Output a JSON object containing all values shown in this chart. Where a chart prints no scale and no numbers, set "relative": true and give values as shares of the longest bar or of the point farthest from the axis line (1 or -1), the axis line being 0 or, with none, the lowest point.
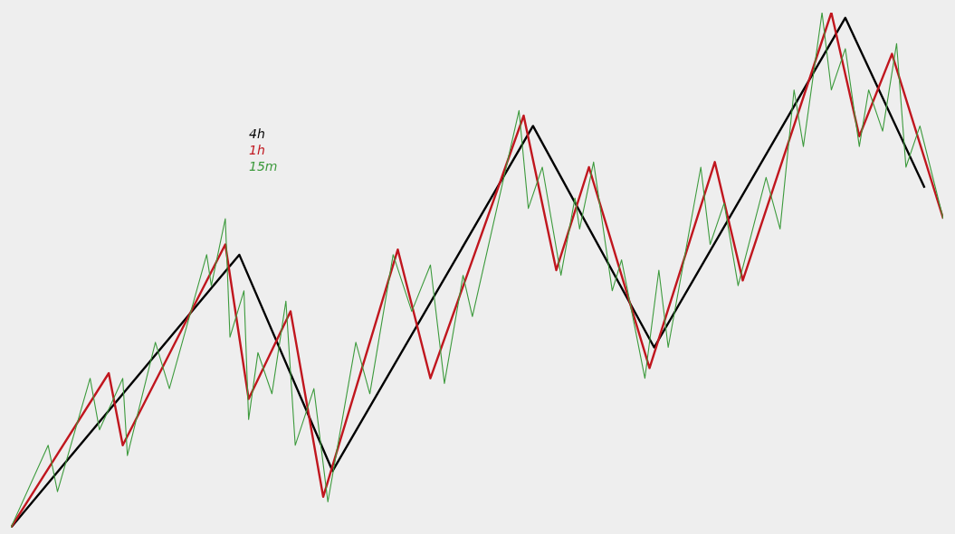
{
  "chart_data": {
    "type": "line",
    "relative": true,
    "grid": false,
    "marker": "none",
    "line_style": "solid",
    "categories": [
      null,
      null,
      null,
      null,
      null,
      null,
      null,
      null,
      null,
      null,
      null,
      null,
      null,
      null,
      null,
      null,
      null,
      null,
      null,
      null,
      null,
      null,
      null,
      null,
      null,
      null,
      null,
      null,
      null,
      null,
      null,
      null,
      null,
      null,
      null,
      null,
      null,
      null,
      null,
      null,
      null,
      null,
      null,
      null,
      null,
      null,
      null,
      null,
      null,
      null,
      null,
      null,
      null,
      null,
      null,
      null,
      null,
      null,
      null,
      null,
      null,
      null,
      null,
      null,
      null,
      null,
      null,
      null,
      null,
      null,
      null,
      null,
      null,
      null,
      null,
      null,
      null,
      null,
      null,
      null,
      null,
      null,
      null,
      null,
      null,
      null,
      null,
      null,
      null,
      null,
      null,
      null,
      null,
      null,
      null,
      null,
      null,
      null,
      null,
      null,
      null,
      null,
      null,
      null,
      null,
      null,
      null,
      null,
      null,
      null,
      null,
      null,
      null,
      null,
      null,
      null,
      null,
      null,
      null,
      null,
      null,
      null,
      null,
      null,
      null,
      null,
      null,
      null,
      null,
      null,
      null,
      null,
      null,
      null,
      null,
      null,
      null,
      null,
      null,
      null,
      null,
      null,
      null,
      null,
      null,
      null,
      null,
      null,
      null,
      null,
      null,
      null,
      null,
      null,
      null,
      null,
      null,
      null,
      null,
      null,
      null,
      null,
      null,
      null,
      null,
      null,
      null,
      null,
      null,
      null,
      null,
      null,
      null,
      null,
      null,
      null,
      null,
      null,
      null,
      null,
      null,
      null,
      null,
      null,
      null,
      null,
      null,
      null,
      null,
      null,
      null,
      null,
      null,
      null,
      null,
      null,
      null,
      null,
      null,
      null,
      null
    ],
    "series": [
      {
        "name": "4h",
        "color": "#000000",
        "values": [
          0,
          null,
          null,
          null,
          null,
          null,
          null,
          null,
          null,
          null,
          null,
          null,
          null,
          null,
          null,
          null,
          null,
          null,
          null,
          null,
          null,
          null,
          null,
          null,
          null,
          null,
          null,
          null,
          null,
          null,
          null,
          null,
          null,
          null,
          null,
          null,
          null,
          null,
          null,
          null,
          null,
          null,
          null,
          null,
          null,
          null,
          null,
          null,
          null,
          0.53,
          null,
          null,
          null,
          null,
          null,
          null,
          null,
          null,
          null,
          null,
          null,
          null,
          null,
          null,
          null,
          null,
          null,
          null,
          null,
          0.11,
          null,
          null,
          null,
          null,
          null,
          null,
          null,
          null,
          null,
          null,
          null,
          null,
          null,
          null,
          null,
          null,
          null,
          null,
          null,
          null,
          null,
          null,
          null,
          null,
          null,
          null,
          null,
          null,
          null,
          null,
          null,
          null,
          null,
          null,
          null,
          null,
          null,
          null,
          null,
          null,
          null,
          null,
          0.78,
          null,
          null,
          null,
          null,
          null,
          null,
          null,
          null,
          null,
          null,
          null,
          null,
          null,
          null,
          null,
          null,
          null,
          null,
          null,
          null,
          null,
          null,
          null,
          null,
          null,
          0.35,
          null,
          null,
          null,
          null,
          null,
          null,
          null,
          null,
          null,
          null,
          null,
          null,
          null,
          null,
          null,
          null,
          null,
          null,
          null,
          null,
          null,
          null,
          null,
          null,
          null,
          null,
          null,
          null,
          null,
          null,
          null,
          null,
          null,
          null,
          null,
          null,
          null,
          null,
          null,
          null,
          0.99,
          null,
          null,
          null,
          null,
          null,
          null,
          null,
          null,
          null,
          null,
          null,
          null,
          null,
          null,
          null,
          null,
          0.66,
          null,
          null,
          null,
          null
        ]
      },
      {
        "name": "1h",
        "color": "#c0161e",
        "values": [
          0,
          null,
          null,
          null,
          null,
          null,
          null,
          null,
          null,
          null,
          null,
          null,
          null,
          null,
          null,
          null,
          null,
          null,
          null,
          null,
          null,
          0.3,
          null,
          null,
          0.16,
          null,
          null,
          null,
          null,
          null,
          null,
          null,
          null,
          null,
          null,
          null,
          null,
          null,
          null,
          null,
          null,
          null,
          null,
          null,
          null,
          null,
          0.55,
          null,
          null,
          null,
          null,
          0.25,
          null,
          null,
          null,
          null,
          null,
          null,
          null,
          null,
          0.42,
          null,
          null,
          null,
          null,
          null,
          null,
          0.06,
          null,
          null,
          null,
          null,
          null,
          null,
          null,
          null,
          null,
          null,
          null,
          null,
          null,
          null,
          null,
          0.54,
          null,
          null,
          null,
          null,
          null,
          null,
          0.29,
          null,
          null,
          null,
          null,
          null,
          null,
          null,
          null,
          null,
          null,
          null,
          null,
          null,
          null,
          null,
          null,
          null,
          null,
          null,
          0.8,
          null,
          null,
          null,
          null,
          null,
          null,
          0.5,
          null,
          null,
          null,
          null,
          null,
          null,
          0.7,
          null,
          null,
          null,
          null,
          null,
          null,
          null,
          null,
          null,
          null,
          null,
          null,
          0.31,
          null,
          null,
          null,
          null,
          null,
          null,
          null,
          null,
          null,
          null,
          null,
          null,
          null,
          0.71,
          null,
          null,
          null,
          null,
          null,
          0.48,
          null,
          null,
          null,
          null,
          null,
          null,
          null,
          null,
          null,
          null,
          null,
          null,
          null,
          null,
          null,
          null,
          null,
          null,
          1.0,
          null,
          null,
          null,
          null,
          null,
          0.76,
          null,
          null,
          null,
          null,
          null,
          null,
          0.92,
          null,
          null,
          null,
          null,
          null,
          null,
          null,
          null,
          null,
          null,
          0.6
        ]
      },
      {
        "name": "15m",
        "color": "#3c9a3c",
        "values": [
          0,
          null,
          null,
          null,
          null,
          null,
          null,
          null,
          0.16,
          null,
          0.07,
          null,
          null,
          null,
          null,
          null,
          null,
          0.29,
          null,
          0.19,
          null,
          null,
          null,
          null,
          0.29,
          0.14,
          null,
          null,
          null,
          null,
          null,
          0.36,
          null,
          null,
          0.27,
          null,
          null,
          null,
          null,
          null,
          null,
          null,
          0.53,
          0.47,
          null,
          null,
          0.6,
          0.37,
          null,
          null,
          0.46,
          0.21,
          null,
          0.34,
          null,
          null,
          0.26,
          null,
          null,
          0.44,
          null,
          0.16,
          null,
          null,
          null,
          0.27,
          null,
          null,
          0.05,
          null,
          null,
          null,
          null,
          null,
          0.36,
          null,
          null,
          0.26,
          null,
          null,
          null,
          null,
          0.53,
          null,
          null,
          null,
          0.42,
          null,
          null,
          null,
          0.51,
          null,
          null,
          0.28,
          null,
          null,
          null,
          0.49,
          null,
          0.41,
          null,
          null,
          null,
          null,
          null,
          null,
          null,
          null,
          null,
          0.81,
          null,
          0.62,
          null,
          null,
          0.7,
          null,
          null,
          null,
          0.49,
          null,
          null,
          0.64,
          0.58,
          null,
          null,
          0.71,
          null,
          null,
          null,
          0.46,
          null,
          0.52,
          null,
          null,
          null,
          null,
          0.29,
          null,
          null,
          0.5,
          null,
          0.35,
          null,
          null,
          null,
          null,
          null,
          null,
          0.7,
          null,
          0.55,
          null,
          null,
          0.63,
          null,
          null,
          0.47,
          null,
          null,
          null,
          null,
          null,
          0.68,
          null,
          null,
          0.58,
          null,
          null,
          0.85,
          null,
          0.74,
          null,
          null,
          null,
          1.0,
          null,
          0.85,
          null,
          null,
          0.93,
          null,
          null,
          0.74,
          null,
          0.85,
          null,
          null,
          0.77,
          null,
          null,
          0.94,
          null,
          0.7,
          null,
          null,
          0.78,
          null,
          null,
          null,
          null,
          0.6
        ]
      }
    ]
  }
}
